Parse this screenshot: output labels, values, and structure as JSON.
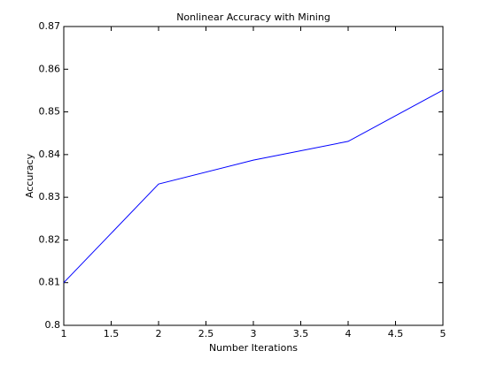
{
  "chart_data": {
    "type": "line",
    "title": "Nonlinear Accuracy with Mining",
    "x_label": "Number Iterations",
    "y_label": "Accuracy",
    "x": [
      1,
      2,
      3,
      4,
      5
    ],
    "series": [
      {
        "name": "Accuracy",
        "color": "#0000ff",
        "values": [
          0.81,
          0.8331,
          0.8387,
          0.8431,
          0.8551
        ]
      }
    ],
    "xlim": [
      1,
      5
    ],
    "xticks": [
      1,
      1.5,
      2,
      2.5,
      3,
      3.5,
      4,
      4.5,
      5
    ],
    "ylim": [
      0.8,
      0.87
    ],
    "yticks": [
      0.8,
      0.81,
      0.82,
      0.83,
      0.84,
      0.85,
      0.86,
      0.87
    ],
    "grid": false
  }
}
